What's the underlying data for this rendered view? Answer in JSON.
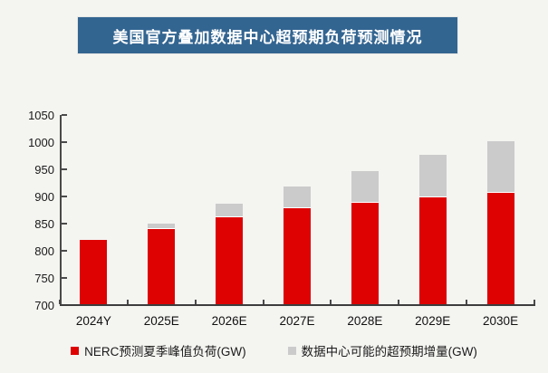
{
  "page": {
    "background": "#f4f4f1"
  },
  "title": {
    "text": "美国官方叠加数据中心超预期负荷预测情况",
    "bg_color": "#336591",
    "text_color": "#ffffff"
  },
  "chart_data": {
    "type": "bar",
    "stacked": true,
    "title": "美国官方叠加数据中心超预期负荷预测情况",
    "categories": [
      "2024Y",
      "2025E",
      "2026E",
      "2027E",
      "2028E",
      "2029E",
      "2030E"
    ],
    "series": [
      {
        "name": "NERC预测夏季峰值负荷(GW)",
        "color": "#de0202",
        "values": [
          820,
          840,
          861,
          878,
          889,
          899,
          907
        ]
      },
      {
        "name": "数据中心可能的超预期增量(GW)",
        "color": "#cbcbcb",
        "values": [
          0,
          10,
          25,
          40,
          58,
          77,
          95
        ]
      }
    ],
    "stack_totals": [
      820,
      850,
      886,
      918,
      947,
      976,
      1002
    ],
    "ylabel": "",
    "xlabel": "",
    "unit": "GW",
    "ylim": [
      700,
      1050
    ],
    "ytick_step": 50,
    "yticks": [
      1050,
      1000,
      950,
      900,
      850,
      800,
      750,
      700
    ],
    "grid": false,
    "legend_position": "bottom",
    "axis_color": "#4a4a4a"
  }
}
